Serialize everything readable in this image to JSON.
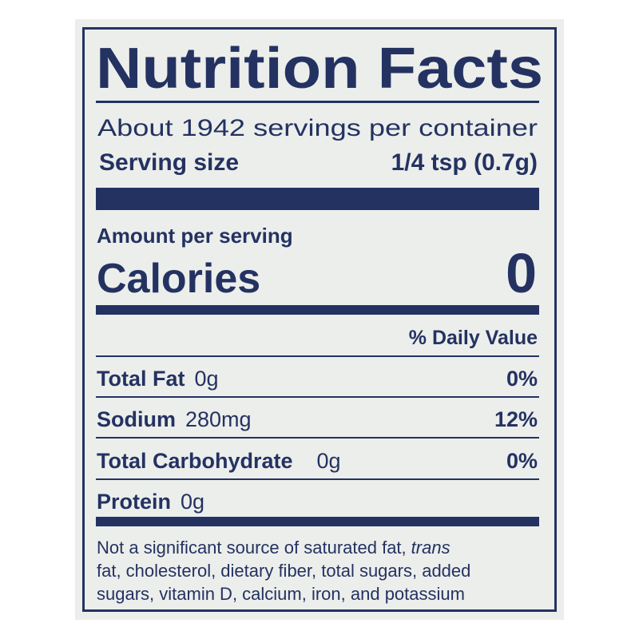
{
  "header": {
    "title": "Nutrition Facts"
  },
  "servings": {
    "per_container": "About 1942 servings per container",
    "label": "Serving size",
    "size": "1/4 tsp (0.7g)"
  },
  "calories": {
    "amount_per_serving": "Amount per serving",
    "label": "Calories",
    "value": "0"
  },
  "daily_value_header": "% Daily Value",
  "nutrients": [
    {
      "name": "Total Fat",
      "amount": "0g",
      "percent": "0%"
    },
    {
      "name": "Sodium",
      "amount": "280mg",
      "percent": "12%"
    },
    {
      "name": "Total Carbohydrate",
      "amount": "0g",
      "percent": "0%"
    },
    {
      "name": "Protein",
      "amount": "0g"
    }
  ],
  "footnote": [
    "Not a significant source of saturated fat,",
    "trans",
    "fat, cholesterol, dietary fiber, total sugars, added",
    "sugars, vitamin D, calcium, iron, and potassium"
  ]
}
